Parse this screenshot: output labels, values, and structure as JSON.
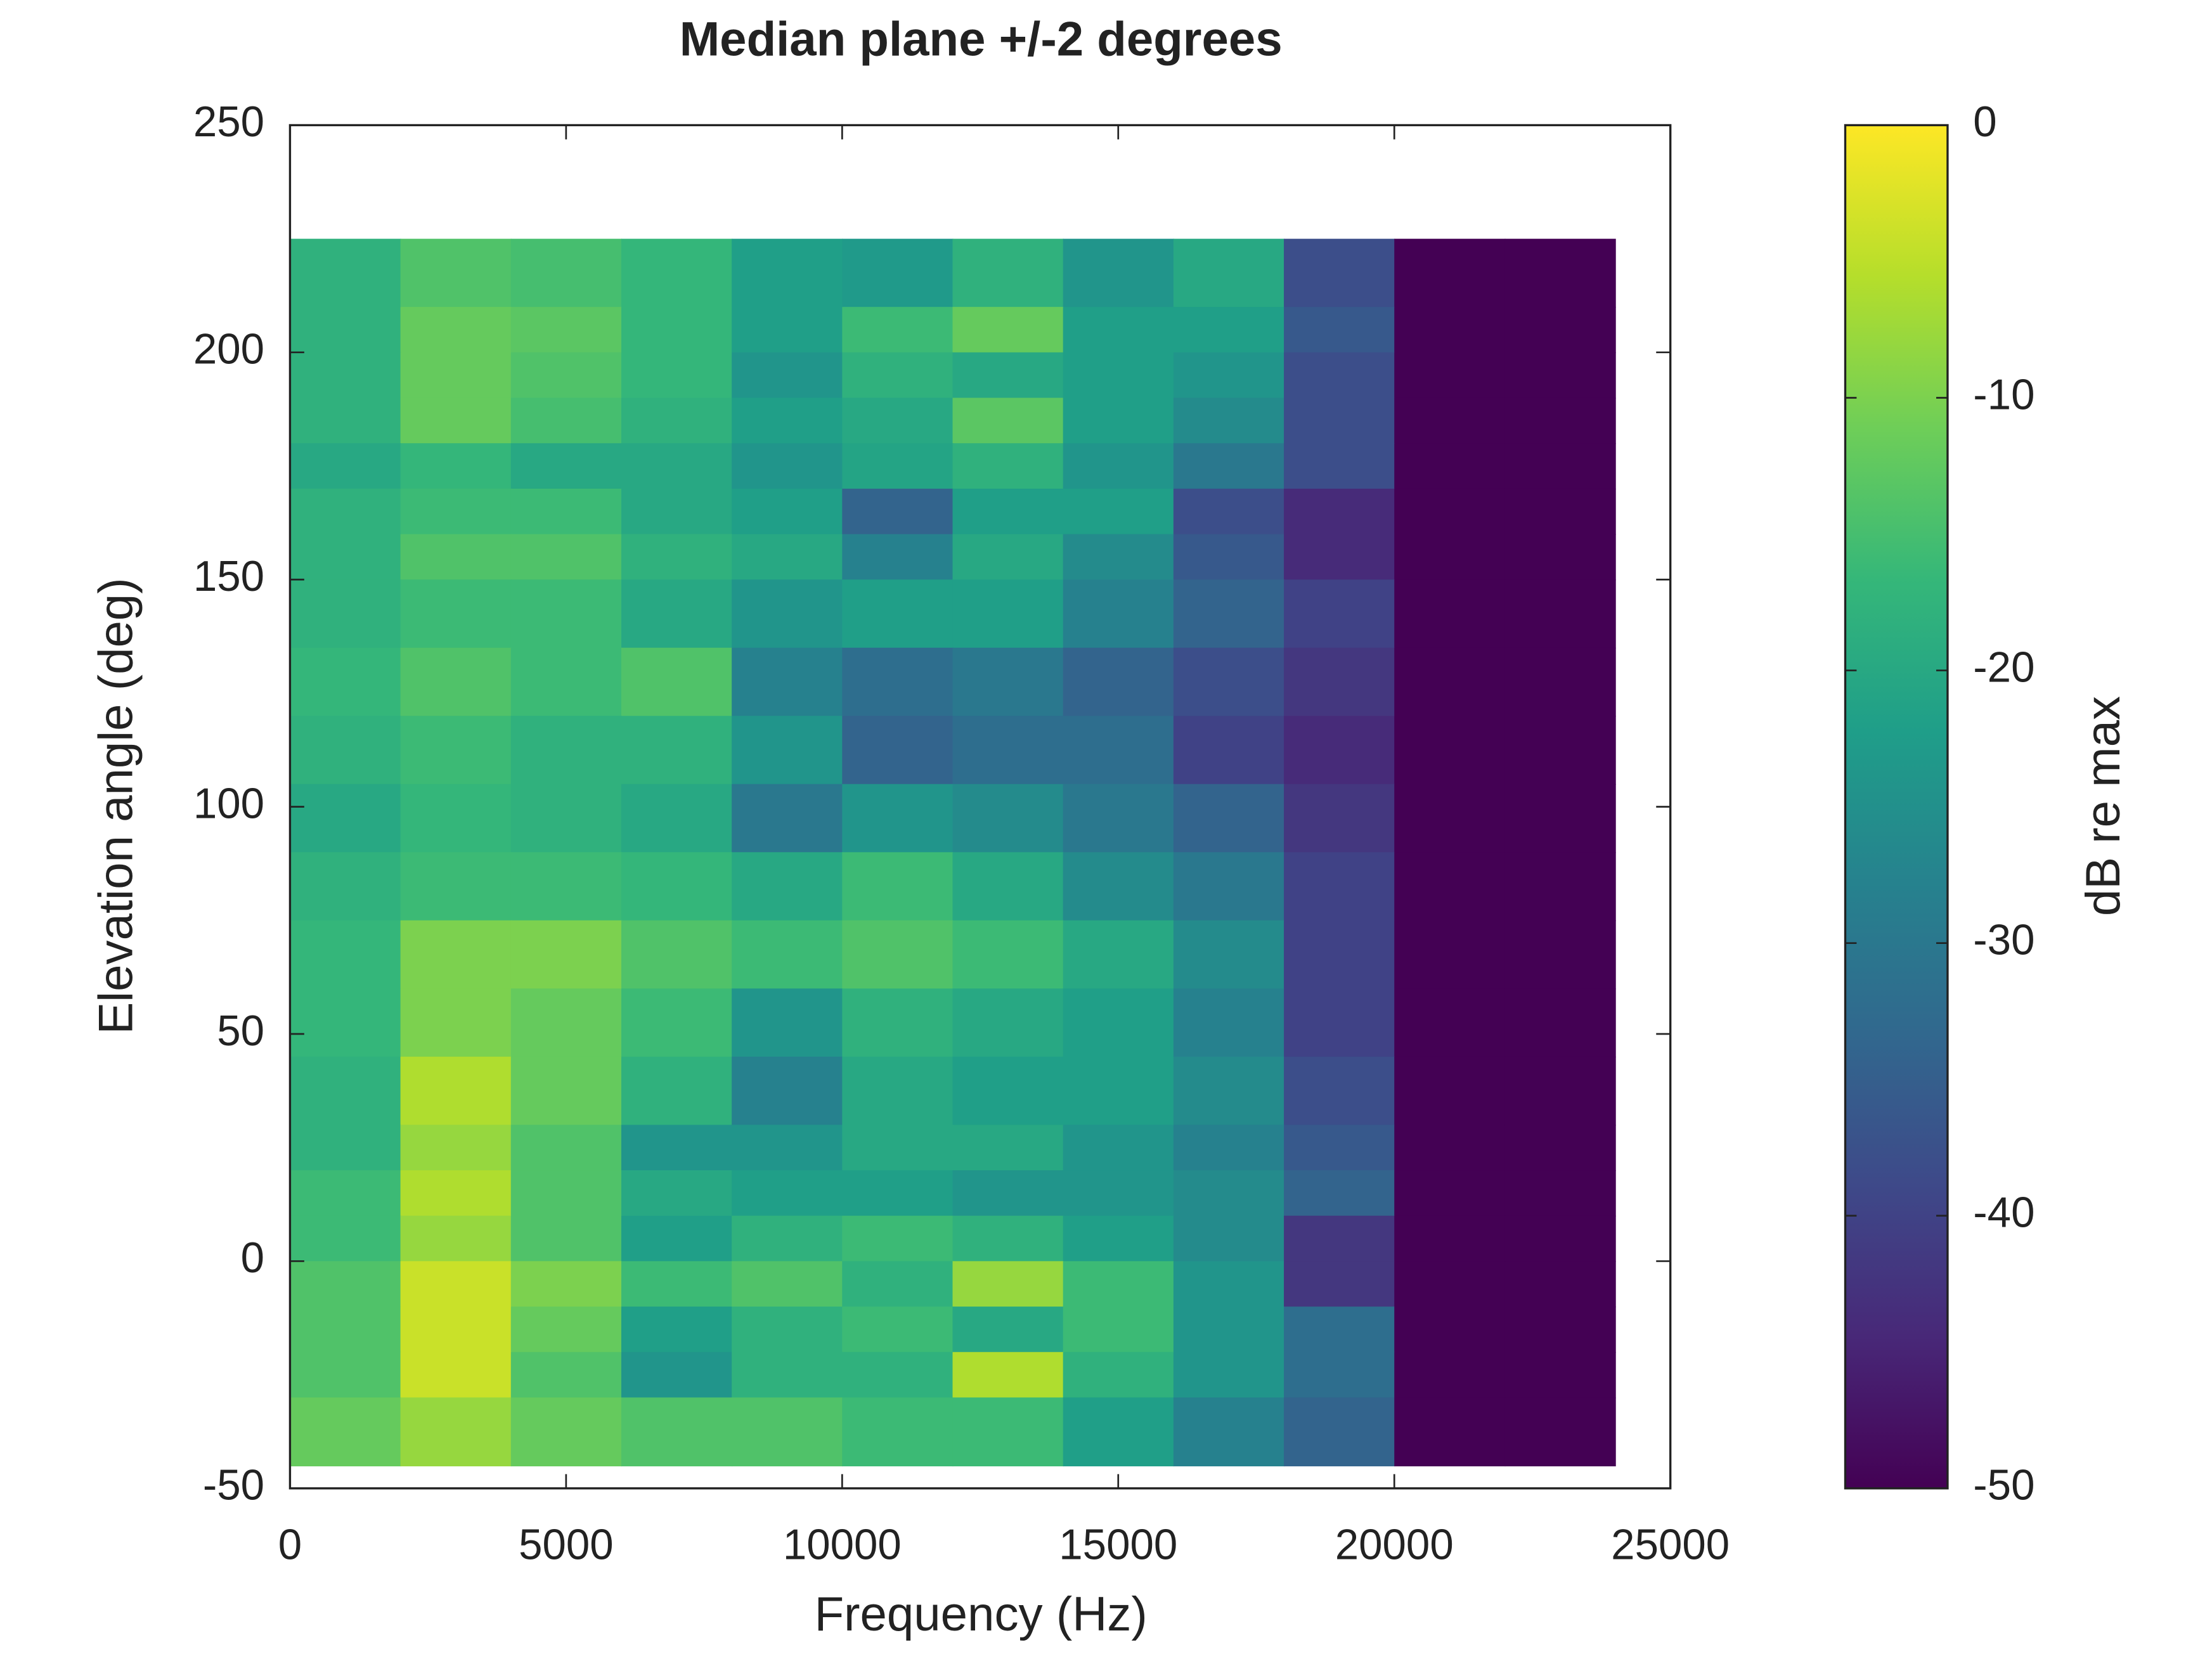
{
  "chart_data": {
    "type": "heatmap",
    "title": "Median plane +/-2 degrees",
    "x_label": "Frequency (Hz)",
    "y_label": "Elevation angle (deg)",
    "colorbar_label": "dB re max",
    "colormap": "viridis",
    "x": [
      0,
      2000,
      4000,
      6000,
      8000,
      10000,
      12000,
      14000,
      16000,
      18000,
      20000,
      22000,
      24000
    ],
    "y": [
      225,
      210,
      200,
      190,
      180,
      170,
      160,
      150,
      135,
      120,
      105,
      90,
      75,
      60,
      45,
      30,
      20,
      10,
      0,
      -10,
      -20,
      -30,
      -45
    ],
    "values": [
      [
        -18,
        -14,
        -15,
        -17,
        -22,
        -23,
        -18,
        -24,
        -20,
        -38,
        -50,
        -50
      ],
      [
        -18,
        -12,
        -13,
        -17,
        -22,
        -16,
        -12,
        -22,
        -22,
        -36,
        -50,
        -50
      ],
      [
        -18,
        -12,
        -14,
        -17,
        -24,
        -18,
        -20,
        -22,
        -24,
        -38,
        -50,
        -50
      ],
      [
        -18,
        -12,
        -15,
        -18,
        -22,
        -20,
        -13,
        -22,
        -26,
        -38,
        -50,
        -50
      ],
      [
        -20,
        -17,
        -20,
        -20,
        -24,
        -21,
        -18,
        -24,
        -30,
        -38,
        -50,
        -50
      ],
      [
        -18,
        -16,
        -16,
        -20,
        -22,
        -34,
        -22,
        -22,
        -38,
        -44,
        -50,
        -50
      ],
      [
        -18,
        -14,
        -14,
        -18,
        -20,
        -28,
        -20,
        -26,
        -36,
        -44,
        -50,
        -50
      ],
      [
        -18,
        -16,
        -16,
        -20,
        -24,
        -22,
        -22,
        -28,
        -34,
        -40,
        -50,
        -50
      ],
      [
        -17,
        -14,
        -16,
        -14,
        -28,
        -32,
        -30,
        -34,
        -38,
        -42,
        -50,
        -50
      ],
      [
        -18,
        -16,
        -18,
        -18,
        -24,
        -34,
        -32,
        -32,
        -40,
        -44,
        -50,
        -50
      ],
      [
        -20,
        -17,
        -18,
        -20,
        -30,
        -24,
        -26,
        -30,
        -34,
        -42,
        -50,
        -50
      ],
      [
        -18,
        -16,
        -16,
        -17,
        -20,
        -16,
        -20,
        -26,
        -30,
        -40,
        -50,
        -50
      ],
      [
        -17,
        -10,
        -10,
        -14,
        -16,
        -14,
        -16,
        -20,
        -26,
        -40,
        -50,
        -50
      ],
      [
        -17,
        -10,
        -12,
        -16,
        -24,
        -18,
        -20,
        -22,
        -28,
        -40,
        -50,
        -50
      ],
      [
        -18,
        -6,
        -12,
        -18,
        -28,
        -20,
        -22,
        -22,
        -26,
        -38,
        -50,
        -50
      ],
      [
        -18,
        -8,
        -14,
        -24,
        -24,
        -20,
        -20,
        -24,
        -28,
        -36,
        -50,
        -50
      ],
      [
        -16,
        -6,
        -14,
        -20,
        -22,
        -22,
        -24,
        -24,
        -26,
        -34,
        -50,
        -50
      ],
      [
        -16,
        -8,
        -14,
        -22,
        -18,
        -16,
        -18,
        -22,
        -26,
        -42,
        -50,
        -50
      ],
      [
        -14,
        -4,
        -10,
        -16,
        -14,
        -18,
        -8,
        -16,
        -24,
        -42,
        -50,
        -50
      ],
      [
        -14,
        -4,
        -12,
        -22,
        -18,
        -16,
        -20,
        -16,
        -24,
        -32,
        -50,
        -50
      ],
      [
        -14,
        -4,
        -14,
        -24,
        -18,
        -18,
        -6,
        -18,
        -24,
        -32,
        -50,
        -50
      ],
      [
        -12,
        -8,
        -12,
        -14,
        -14,
        -16,
        -16,
        -22,
        -28,
        -34,
        -50,
        -50
      ]
    ],
    "xlim": [
      0,
      25000
    ],
    "xticks": [
      0,
      5000,
      10000,
      15000,
      20000,
      25000
    ],
    "ylim": [
      -50,
      250
    ],
    "yticks": [
      -50,
      0,
      50,
      100,
      150,
      200,
      250
    ],
    "clim": [
      -50,
      0
    ],
    "cticks": [
      -50,
      -40,
      -30,
      -20,
      -10,
      0
    ]
  }
}
